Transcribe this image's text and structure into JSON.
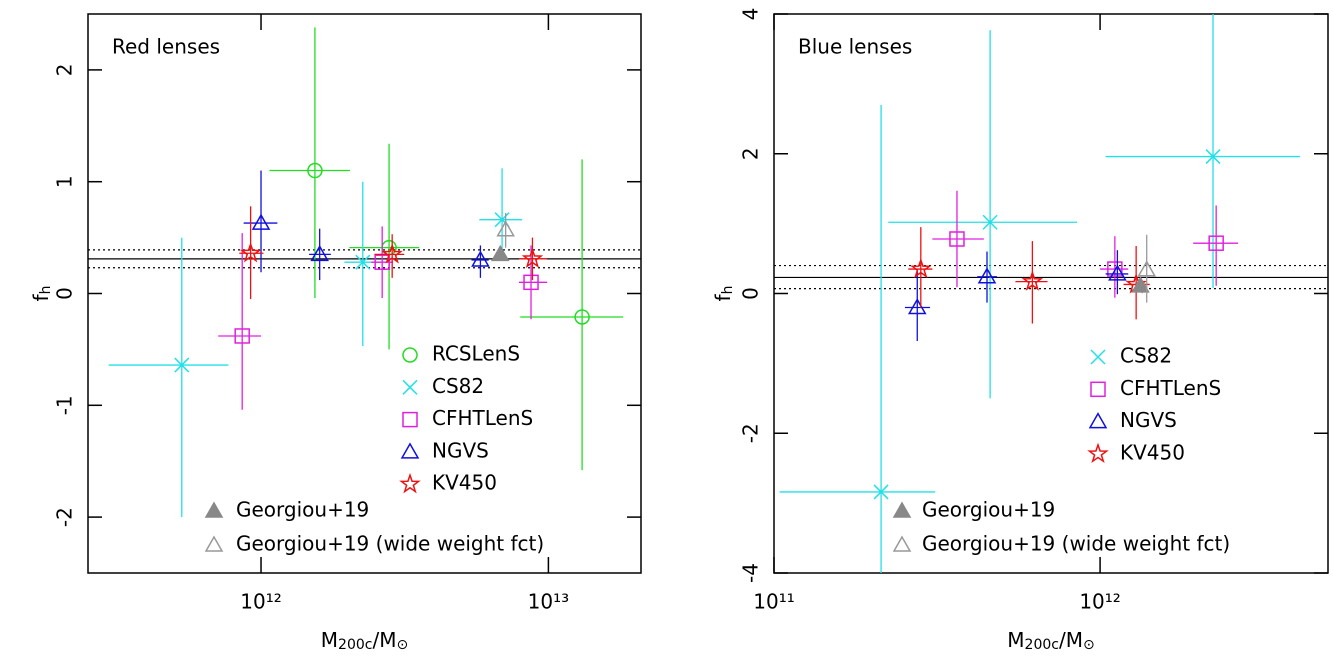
{
  "chart_data": [
    {
      "type": "scatter",
      "annotation": "Red lenses",
      "annotation_color": "#ff2020",
      "xscale": "log",
      "xlim": [
        250000000000.0,
        21000000000000.0
      ],
      "ylim": [
        -2.5,
        2.5
      ],
      "xticks": [
        {
          "value": 1000000000000.0,
          "label": "10¹²"
        },
        {
          "value": 10000000000000.0,
          "label": "10¹³"
        }
      ],
      "yticks": [
        -2,
        -1,
        0,
        1,
        2
      ],
      "xlabel": [
        {
          "text": "M"
        },
        {
          "text": "200c",
          "sub": true
        },
        {
          "text": "/M"
        },
        {
          "text": "⊙",
          "sub": true
        }
      ],
      "ylabel": [
        {
          "text": "f"
        },
        {
          "text": "h",
          "sub": true
        }
      ],
      "hlines": [
        {
          "y": 0.31,
          "style": "solid"
        },
        {
          "y": 0.39,
          "style": "dotted"
        },
        {
          "y": 0.23,
          "style": "dotted"
        }
      ],
      "series": [
        {
          "name": "RCSLenS",
          "color": "#22dd22",
          "marker": "circle",
          "x": [
            1540000000000.0,
            2790000000000.0,
            13100000000000.0
          ],
          "y": [
            1.1,
            0.41,
            -0.21
          ],
          "xlow": [
            1070000000000.0,
            2030000000000.0,
            7980000000000.0
          ],
          "xhigh": [
            2040000000000.0,
            3550000000000.0,
            18200000000000.0
          ],
          "ylow": [
            -0.04,
            -0.5,
            -1.58
          ],
          "yhigh": [
            2.38,
            1.34,
            1.2
          ]
        },
        {
          "name": "CS82",
          "color": "#22e0e8",
          "marker": "cross",
          "x": [
            530000000000.0,
            2260000000000.0,
            6900000000000.0
          ],
          "y": [
            -0.64,
            0.28,
            0.66
          ],
          "xlow": [
            295000000000.0,
            1950000000000.0,
            5750000000000.0
          ],
          "xhigh": [
            770000000000.0,
            2480000000000.0,
            8100000000000.0
          ],
          "ylow": [
            -2.0,
            -0.47,
            0.3
          ],
          "yhigh": [
            0.5,
            1.0,
            1.12
          ]
        },
        {
          "name": "CFHTLenS",
          "color": "#e020e0",
          "marker": "square",
          "x": [
            860000000000.0,
            2640000000000.0,
            8700000000000.0
          ],
          "y": [
            -0.38,
            0.28,
            0.1
          ],
          "xlow": [
            710000000000.0,
            2420000000000.0,
            7900000000000.0
          ],
          "xhigh": [
            1000000000000.0,
            2880000000000.0,
            9900000000000.0
          ],
          "ylow": [
            -1.04,
            -0.04,
            -0.23
          ],
          "yhigh": [
            0.54,
            0.6,
            0.43
          ]
        },
        {
          "name": "NGVS",
          "color": "#1010dd",
          "marker": "triangle",
          "x": [
            1000000000000.0,
            1600000000000.0,
            5800000000000.0
          ],
          "y": [
            0.63,
            0.35,
            0.3
          ],
          "xlow": [
            870000000000.0,
            1470000000000.0,
            5400000000000.0
          ],
          "xhigh": [
            1140000000000.0,
            1750000000000.0,
            6200000000000.0
          ],
          "ylow": [
            0.19,
            0.12,
            0.14
          ],
          "yhigh": [
            1.1,
            0.58,
            0.43
          ]
        },
        {
          "name": "KV450",
          "color": "#ee1111",
          "marker": "star",
          "x": [
            920000000000.0,
            2860000000000.0,
            8800000000000.0
          ],
          "y": [
            0.36,
            0.35,
            0.31
          ],
          "xlow": [
            840000000000.0,
            2480000000000.0,
            7900000000000.0
          ],
          "xhigh": [
            1020000000000.0,
            3150000000000.0,
            9900000000000.0
          ],
          "ylow": [
            -0.05,
            0.14,
            0.12
          ],
          "yhigh": [
            0.78,
            0.53,
            0.5
          ]
        },
        {
          "name": "Georgiou+19",
          "color": "#888888",
          "marker": "triangle-filled",
          "x": [
            6800000000000.0
          ],
          "y": [
            0.35
          ],
          "xlow": [
            null
          ],
          "xhigh": [
            null
          ],
          "ylow": [
            null
          ],
          "yhigh": [
            null
          ]
        },
        {
          "name": "Georgiou+19 (wide weight fct)",
          "color": "#999999",
          "marker": "triangle",
          "x": [
            7100000000000.0
          ],
          "y": [
            0.57
          ],
          "xlow": [
            null
          ],
          "xhigh": [
            null
          ],
          "ylow": [
            0.41
          ],
          "yhigh": [
            0.72
          ]
        }
      ]
    },
    {
      "type": "scatter",
      "annotation": "Blue lenses",
      "annotation_color": "#1a1ae0",
      "xscale": "log",
      "xlim": [
        100000000000.0,
        5000000000000.0
      ],
      "ylim": [
        -4,
        4
      ],
      "xticks": [
        {
          "value": 100000000000.0,
          "label": "10¹¹"
        },
        {
          "value": 1000000000000.0,
          "label": "10¹²"
        }
      ],
      "yticks": [
        -4,
        -2,
        0,
        2,
        4
      ],
      "xlabel": [
        {
          "text": "M"
        },
        {
          "text": "200c",
          "sub": true
        },
        {
          "text": "/M"
        },
        {
          "text": "⊙",
          "sub": true
        }
      ],
      "ylabel": [
        {
          "text": "f"
        },
        {
          "text": "h",
          "sub": true
        }
      ],
      "hlines": [
        {
          "y": 0.23,
          "style": "solid"
        },
        {
          "y": 0.4,
          "style": "dotted"
        },
        {
          "y": 0.07,
          "style": "dotted"
        }
      ],
      "series": [
        {
          "name": "CS82",
          "color": "#22e0e8",
          "marker": "cross",
          "x": [
            213000000000.0,
            460000000000.0,
            2220000000000.0
          ],
          "y": [
            -2.84,
            1.02,
            1.96
          ],
          "xlow": [
            104000000000.0,
            224000000000.0,
            1040000000000.0
          ],
          "xhigh": [
            312000000000.0,
            850000000000.0,
            4100000000000.0
          ],
          "ylow": [
            -4,
            -1.5,
            0.08
          ],
          "yhigh": [
            2.7,
            3.77,
            4
          ]
        },
        {
          "name": "CFHTLenS",
          "color": "#e020e0",
          "marker": "square",
          "x": [
            364000000000.0,
            1110000000000.0,
            2270000000000.0
          ],
          "y": [
            0.78,
            0.35,
            0.72
          ],
          "xlow": [
            306000000000.0,
            1000000000000.0,
            1930000000000.0
          ],
          "xhigh": [
            440000000000.0,
            1220000000000.0,
            2650000000000.0
          ],
          "ylow": [
            0.09,
            -0.06,
            0.11
          ],
          "yhigh": [
            1.47,
            0.82,
            1.26
          ]
        },
        {
          "name": "NGVS",
          "color": "#1010dd",
          "marker": "triangle",
          "x": [
            275000000000.0,
            450000000000.0,
            1130000000000.0
          ],
          "y": [
            -0.2,
            0.24,
            0.28
          ],
          "xlow": [
            252000000000.0,
            420000000000.0,
            1040000000000.0
          ],
          "xhigh": [
            301000000000.0,
            483000000000.0,
            1220000000000.0
          ],
          "ylow": [
            -0.68,
            -0.13,
            -0.01
          ],
          "yhigh": [
            0.34,
            0.6,
            0.62
          ]
        },
        {
          "name": "KV450",
          "color": "#ee1111",
          "marker": "star",
          "x": [
            282000000000.0,
            620000000000.0,
            1290000000000.0
          ],
          "y": [
            0.35,
            0.17,
            0.13
          ],
          "xlow": [
            258000000000.0,
            550000000000.0,
            1180000000000.0
          ],
          "xhigh": [
            306000000000.0,
            690000000000.0,
            1420000000000.0
          ],
          "ylow": [
            -0.2,
            -0.43,
            -0.37
          ],
          "yhigh": [
            0.95,
            0.75,
            0.68
          ]
        },
        {
          "name": "Georgiou+19",
          "color": "#888888",
          "marker": "triangle-filled",
          "x": [
            1330000000000.0
          ],
          "y": [
            0.11
          ],
          "xlow": [
            null
          ],
          "xhigh": [
            null
          ],
          "ylow": [
            null
          ],
          "yhigh": [
            null
          ]
        },
        {
          "name": "Georgiou+19 (wide weight fct)",
          "color": "#999999",
          "marker": "triangle",
          "x": [
            1390000000000.0
          ],
          "y": [
            0.34
          ],
          "xlow": [
            null
          ],
          "xhigh": [
            null
          ],
          "ylow": [
            -0.13
          ],
          "yhigh": [
            0.84
          ]
        }
      ]
    }
  ]
}
